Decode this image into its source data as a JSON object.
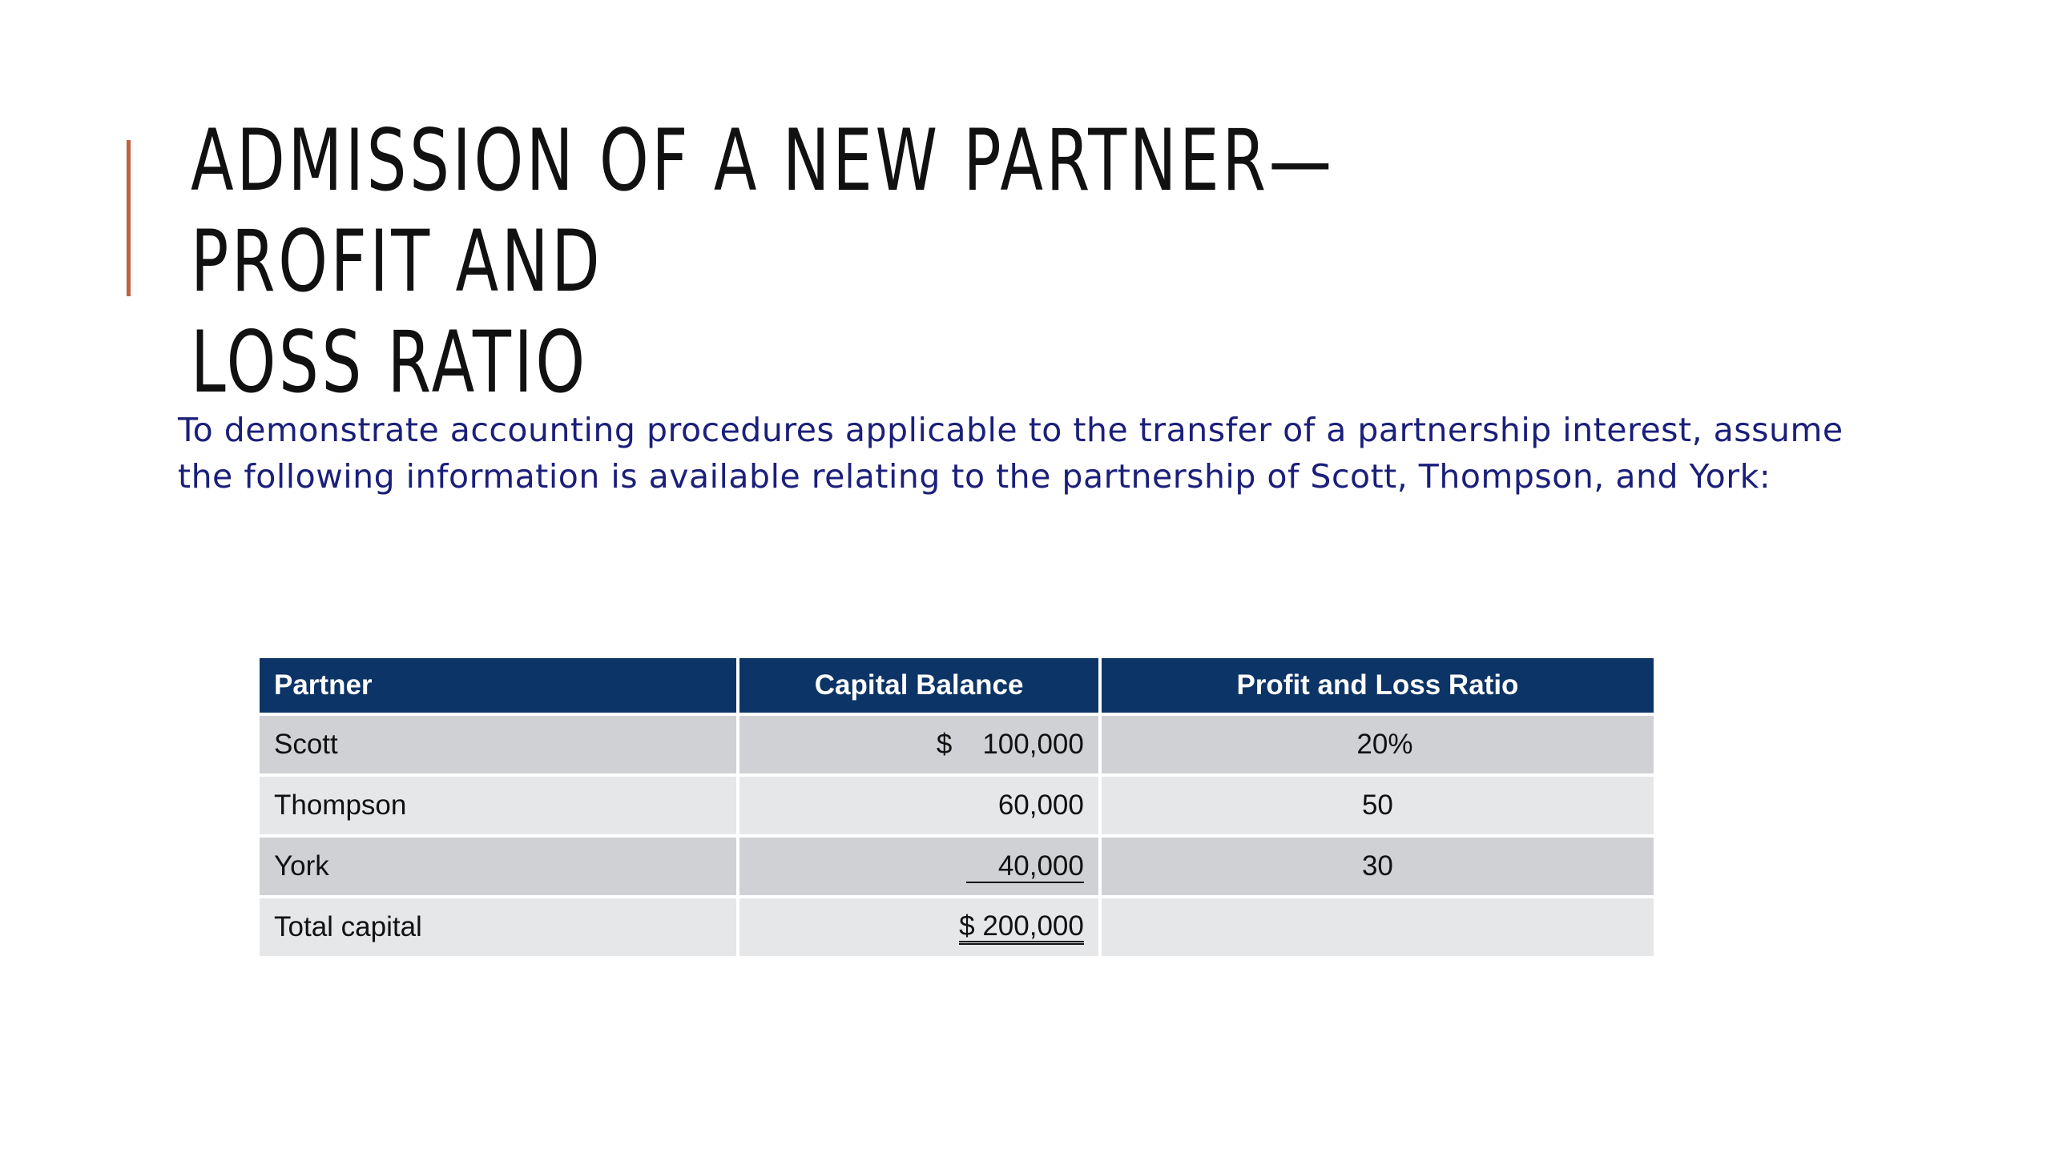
{
  "slide": {
    "title_line1": "Admission of a New Partner—Profit and",
    "title_line2": "Loss Ratio",
    "intro_line1": "To demonstrate accounting procedures applicable to the transfer of a partnership interest, assume",
    "intro_line2": "the following information is available relating to the partnership of Scott, Thompson, and York:"
  },
  "table": {
    "headers": [
      "Partner",
      "Capital Balance",
      "Profit and Loss Ratio"
    ],
    "rows": [
      {
        "partner": "Scott",
        "currency": "$",
        "capital": "100,000",
        "ratio": "20%"
      },
      {
        "partner": "Thompson",
        "currency": "",
        "capital": "60,000",
        "ratio": "50"
      },
      {
        "partner": "York",
        "currency": "",
        "capital": "40,000",
        "ratio": "30"
      }
    ],
    "total": {
      "label": "Total capital",
      "capital": "$ 200,000",
      "ratio": ""
    }
  },
  "colors": {
    "accent": "#c0603f",
    "header_bg": "#0d3466",
    "intro_text": "#1b1f7a",
    "row_dark": "#cfd1d5",
    "row_light": "#e6e7e9"
  }
}
